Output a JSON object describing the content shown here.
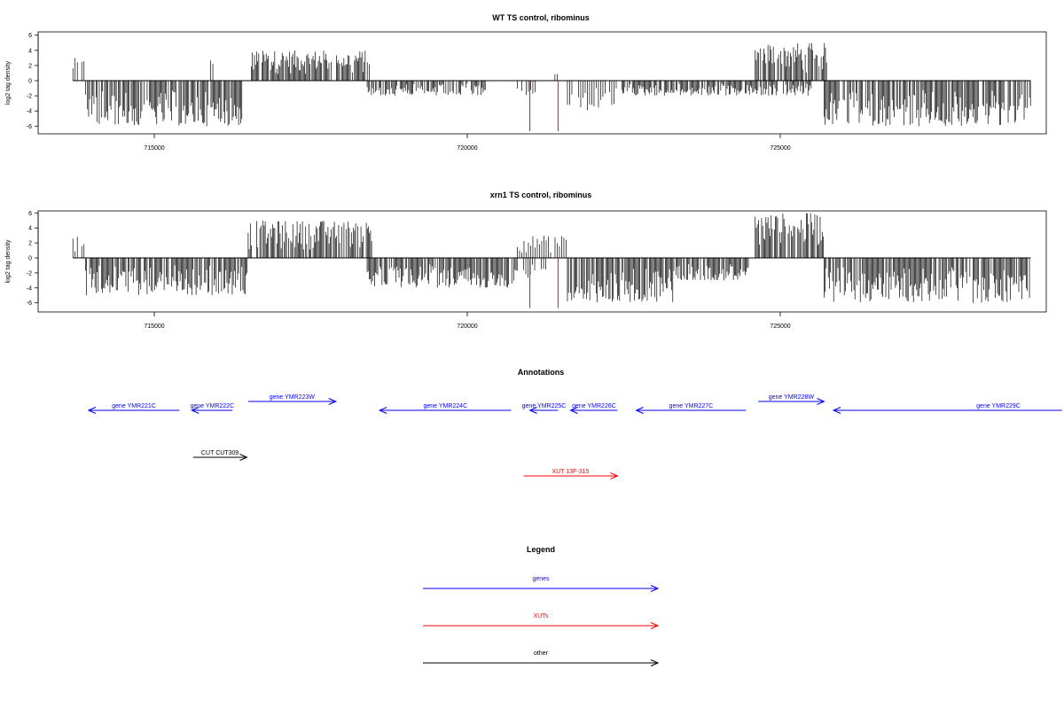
{
  "panels": [
    {
      "title": "WT TS control, ribominus",
      "ylabel": "log2 tag density",
      "ylim": [
        -7,
        7
      ],
      "yticks": [
        -6,
        -4,
        -2,
        0,
        2,
        4,
        6
      ],
      "red_lines": [
        721000,
        721450
      ],
      "chart_data": {
        "type": "bar",
        "x_range": [
          713700,
          729000
        ],
        "positive_runs": [
          {
            "x": [
              713700,
              713900
            ],
            "max": 3
          },
          {
            "x": [
              715900,
              715950
            ],
            "max": 3
          },
          {
            "x": [
              716550,
              718450
            ],
            "max": 4
          },
          {
            "x": [
              721400,
              721450
            ],
            "max": 1
          },
          {
            "x": [
              724600,
              725750
            ],
            "max": 5
          }
        ],
        "negative_runs": [
          {
            "x": [
              713900,
              716400
            ],
            "min": -6
          },
          {
            "x": [
              718400,
              720300
            ],
            "min": -2
          },
          {
            "x": [
              720800,
              721100
            ],
            "min": -2
          },
          {
            "x": [
              721600,
              722400
            ],
            "min": -4
          },
          {
            "x": [
              722400,
              725500
            ],
            "min": -2
          },
          {
            "x": [
              725700,
              729000
            ],
            "min": -6
          }
        ]
      }
    },
    {
      "title": "xrn1 TS control, ribominus",
      "ylabel": "log2 tag density",
      "ylim": [
        -7,
        7
      ],
      "yticks": [
        -6,
        -4,
        -2,
        0,
        2,
        4,
        6
      ],
      "red_lines": [
        721000,
        721450
      ],
      "chart_data": {
        "type": "bar",
        "x_range": [
          713700,
          729000
        ],
        "positive_runs": [
          {
            "x": [
              713700,
              713900
            ],
            "max": 3
          },
          {
            "x": [
              716500,
              718500
            ],
            "max": 5
          },
          {
            "x": [
              720800,
              721600
            ],
            "max": 3
          },
          {
            "x": [
              724600,
              725700
            ],
            "max": 6
          }
        ],
        "negative_runs": [
          {
            "x": [
              713900,
              716500
            ],
            "min": -5
          },
          {
            "x": [
              718400,
              720800
            ],
            "min": -4
          },
          {
            "x": [
              720900,
              721300
            ],
            "min": -3
          },
          {
            "x": [
              721600,
              723300
            ],
            "min": -6
          },
          {
            "x": [
              723300,
              724500
            ],
            "min": -3
          },
          {
            "x": [
              725700,
              729000
            ],
            "min": -6
          }
        ]
      }
    }
  ],
  "x_axis": {
    "ticks": [
      715000,
      720000,
      725000
    ],
    "tick_labels": [
      "715000",
      "720000",
      "725000"
    ]
  },
  "annotations": {
    "title": "Annotations",
    "features": [
      {
        "label": "gene YMR221C",
        "start": 713950,
        "end": 715400,
        "strand": "-",
        "color": "#0000ff",
        "row": 1
      },
      {
        "label": "gene YMR222C",
        "start": 715600,
        "end": 716250,
        "strand": "-",
        "color": "#0000ff",
        "row": 1
      },
      {
        "label": "gene YMR223W",
        "start": 716500,
        "end": 717900,
        "strand": "+",
        "color": "#0000ff",
        "row": 0
      },
      {
        "label": "gene YMR224C",
        "start": 718600,
        "end": 720700,
        "strand": "-",
        "color": "#0000ff",
        "row": 1
      },
      {
        "label": "gene YMR225C",
        "start": 721000,
        "end": 721450,
        "strand": "-",
        "color": "#0000ff",
        "row": 1
      },
      {
        "label": "gene YMR226C",
        "start": 721650,
        "end": 722400,
        "strand": "-",
        "color": "#0000ff",
        "row": 1
      },
      {
        "label": "gene YMR227C",
        "start": 722700,
        "end": 724450,
        "strand": "-",
        "color": "#0000ff",
        "row": 1
      },
      {
        "label": "gene YMR228W",
        "start": 724650,
        "end": 725700,
        "strand": "+",
        "color": "#0000ff",
        "row": 0
      },
      {
        "label": "gene YMR229C",
        "start": 725850,
        "end": 729500,
        "strand": "-",
        "color": "#0000ff",
        "row": 1
      },
      {
        "label": "CUT CUT309",
        "start": 715620,
        "end": 716480,
        "strand": "+",
        "color": "#000000",
        "row": 2
      },
      {
        "label": "XUT 13F-315",
        "start": 720900,
        "end": 722400,
        "strand": "+",
        "color": "#ff0000",
        "row": 3
      }
    ]
  },
  "legend": {
    "title": "Legend",
    "items": [
      {
        "label": "genes",
        "color": "#0000ff"
      },
      {
        "label": "XUTs",
        "color": "#ff0000"
      },
      {
        "label": "other",
        "color": "#000000"
      }
    ]
  }
}
